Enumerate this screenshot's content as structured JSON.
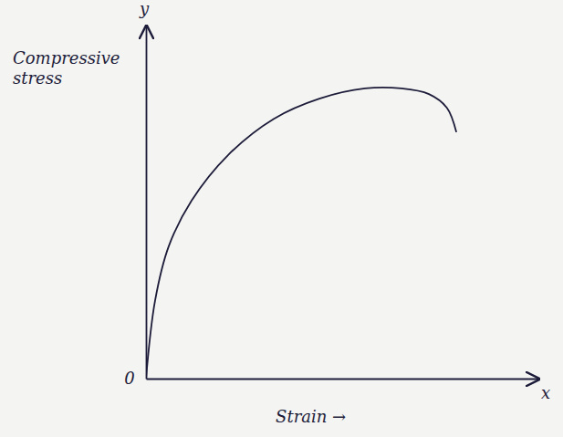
{
  "chart_data": {
    "type": "line",
    "y_label": "Compressive stress",
    "x_label": "Strain →",
    "annotations": [
      {
        "text": "y"
      },
      {
        "text": "x"
      },
      {
        "text": "0"
      }
    ],
    "x": [
      0,
      0.23,
      0.58,
      1.16,
      2.09,
      3.26,
      4.42,
      5.58,
      6.51,
      7.21,
      7.67,
      7.91
    ],
    "values": [
      0,
      2.2,
      3.75,
      5.04,
      6.33,
      7.36,
      7.93,
      8.22,
      8.22,
      8.06,
      7.67,
      6.98
    ],
    "color": "#1c1c3a",
    "xlim": [
      0,
      10
    ],
    "ylim": [
      0,
      10
    ],
    "grid": false,
    "tick_labels": false
  }
}
